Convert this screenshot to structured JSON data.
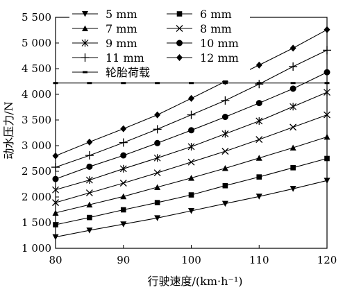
{
  "chart_data": {
    "type": "line",
    "title": "",
    "xlabel": "行驶速度/(km·h⁻¹)",
    "ylabel": "动水压力/N",
    "xlim": [
      80,
      120
    ],
    "ylim": [
      1000,
      5500
    ],
    "x_ticks": [
      "80",
      "90",
      "100",
      "110",
      "120"
    ],
    "y_ticks": [
      "1 000",
      "1 500",
      "2 000",
      "2 500",
      "3 000",
      "3 500",
      "4 000",
      "4 500",
      "5 000",
      "5 500"
    ],
    "x_tick_values": [
      80,
      90,
      100,
      110,
      120
    ],
    "y_tick_values": [
      1000,
      1500,
      2000,
      2500,
      3000,
      3500,
      4000,
      4500,
      5000,
      5500
    ],
    "grid": false,
    "legend_placement": "top-left",
    "x": [
      80,
      85,
      90,
      95,
      100,
      105,
      110,
      115,
      120
    ],
    "series": [
      {
        "name": "5 mm",
        "marker": "triangle-down",
        "values": [
          1220,
          1350,
          1470,
          1590,
          1730,
          1870,
          2010,
          2160,
          2320
        ]
      },
      {
        "name": "6 mm",
        "marker": "square",
        "values": [
          1460,
          1600,
          1750,
          1890,
          2040,
          2220,
          2390,
          2570,
          2750
        ]
      },
      {
        "name": "7 mm",
        "marker": "triangle-up",
        "values": [
          1690,
          1850,
          2010,
          2190,
          2370,
          2560,
          2760,
          2960,
          3170
        ]
      },
      {
        "name": "8 mm",
        "marker": "x",
        "values": [
          1890,
          2080,
          2270,
          2470,
          2680,
          2890,
          3120,
          3360,
          3600
        ]
      },
      {
        "name": "9 mm",
        "marker": "asterisk",
        "values": [
          2140,
          2330,
          2550,
          2760,
          2980,
          3230,
          3480,
          3760,
          4040
        ]
      },
      {
        "name": "10 mm",
        "marker": "circle",
        "values": [
          2350,
          2590,
          2810,
          3050,
          3300,
          3560,
          3830,
          4110,
          4430
        ]
      },
      {
        "name": "11 mm",
        "marker": "plus",
        "values": [
          2580,
          2810,
          3060,
          3320,
          3600,
          3880,
          4200,
          4540,
          4860
        ]
      },
      {
        "name": "12 mm",
        "marker": "diamond",
        "values": [
          2800,
          3070,
          3330,
          3600,
          3920,
          4250,
          4570,
          4900,
          5260
        ]
      },
      {
        "name": "轮胎荷载",
        "marker": "dash",
        "values": [
          4220,
          4220,
          4220,
          4220,
          4220,
          4220,
          4220,
          4220,
          4220
        ]
      }
    ]
  }
}
